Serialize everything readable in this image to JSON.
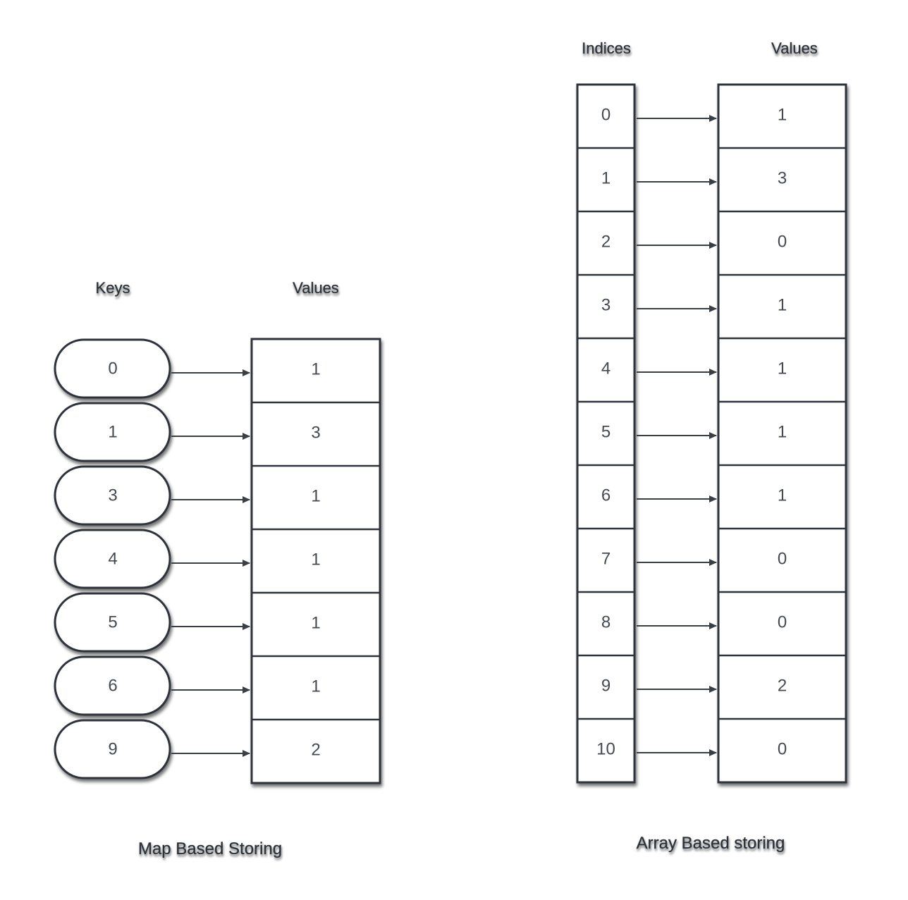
{
  "map_diagram": {
    "keys_label": "Keys",
    "values_label": "Values",
    "caption": "Map Based Storing",
    "keys": [
      "0",
      "1",
      "3",
      "4",
      "5",
      "6",
      "9"
    ],
    "values": [
      "1",
      "3",
      "1",
      "1",
      "1",
      "1",
      "2"
    ]
  },
  "array_diagram": {
    "indices_label": "Indices",
    "values_label": "Values",
    "caption": "Array Based storing",
    "indices": [
      "0",
      "1",
      "2",
      "3",
      "4",
      "5",
      "6",
      "7",
      "8",
      "9",
      "10"
    ],
    "values": [
      "1",
      "3",
      "0",
      "1",
      "1",
      "1",
      "1",
      "0",
      "0",
      "2",
      "0"
    ]
  },
  "colors": {
    "stroke": "#2f333b",
    "text": "#454a52",
    "background": "#ffffff"
  }
}
